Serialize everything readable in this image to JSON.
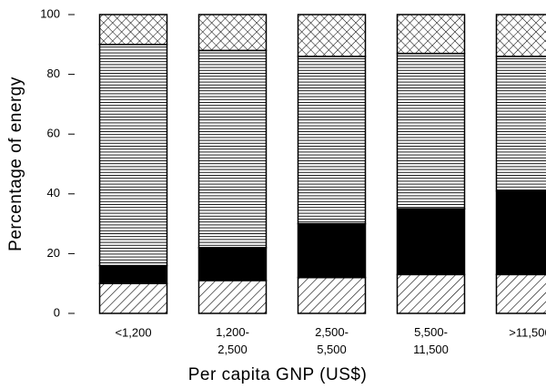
{
  "chart_data": {
    "type": "stacked-bar",
    "x_label": "Per capita GNP (US$)",
    "y_label": "Percentage of energy",
    "categories": [
      "<1,200",
      "1,200-\n2,500",
      "2,500-\n5,500",
      "5,500-\n11,500",
      ">11,500"
    ],
    "series": [
      {
        "pattern": "diagonal",
        "color": "#000000",
        "values": [
          10,
          11,
          12,
          13,
          13
        ]
      },
      {
        "pattern": "solid",
        "color": "#000000",
        "values": [
          6,
          11,
          18,
          22,
          28
        ]
      },
      {
        "pattern": "horizontal",
        "color": "#000000",
        "values": [
          74,
          66,
          56,
          52,
          45
        ]
      },
      {
        "pattern": "crosshatch",
        "color": "#000000",
        "values": [
          10,
          12,
          14,
          13,
          14
        ]
      }
    ],
    "ylim": [
      0,
      100
    ],
    "yticks": [
      0,
      20,
      40,
      60,
      80,
      100
    ]
  }
}
